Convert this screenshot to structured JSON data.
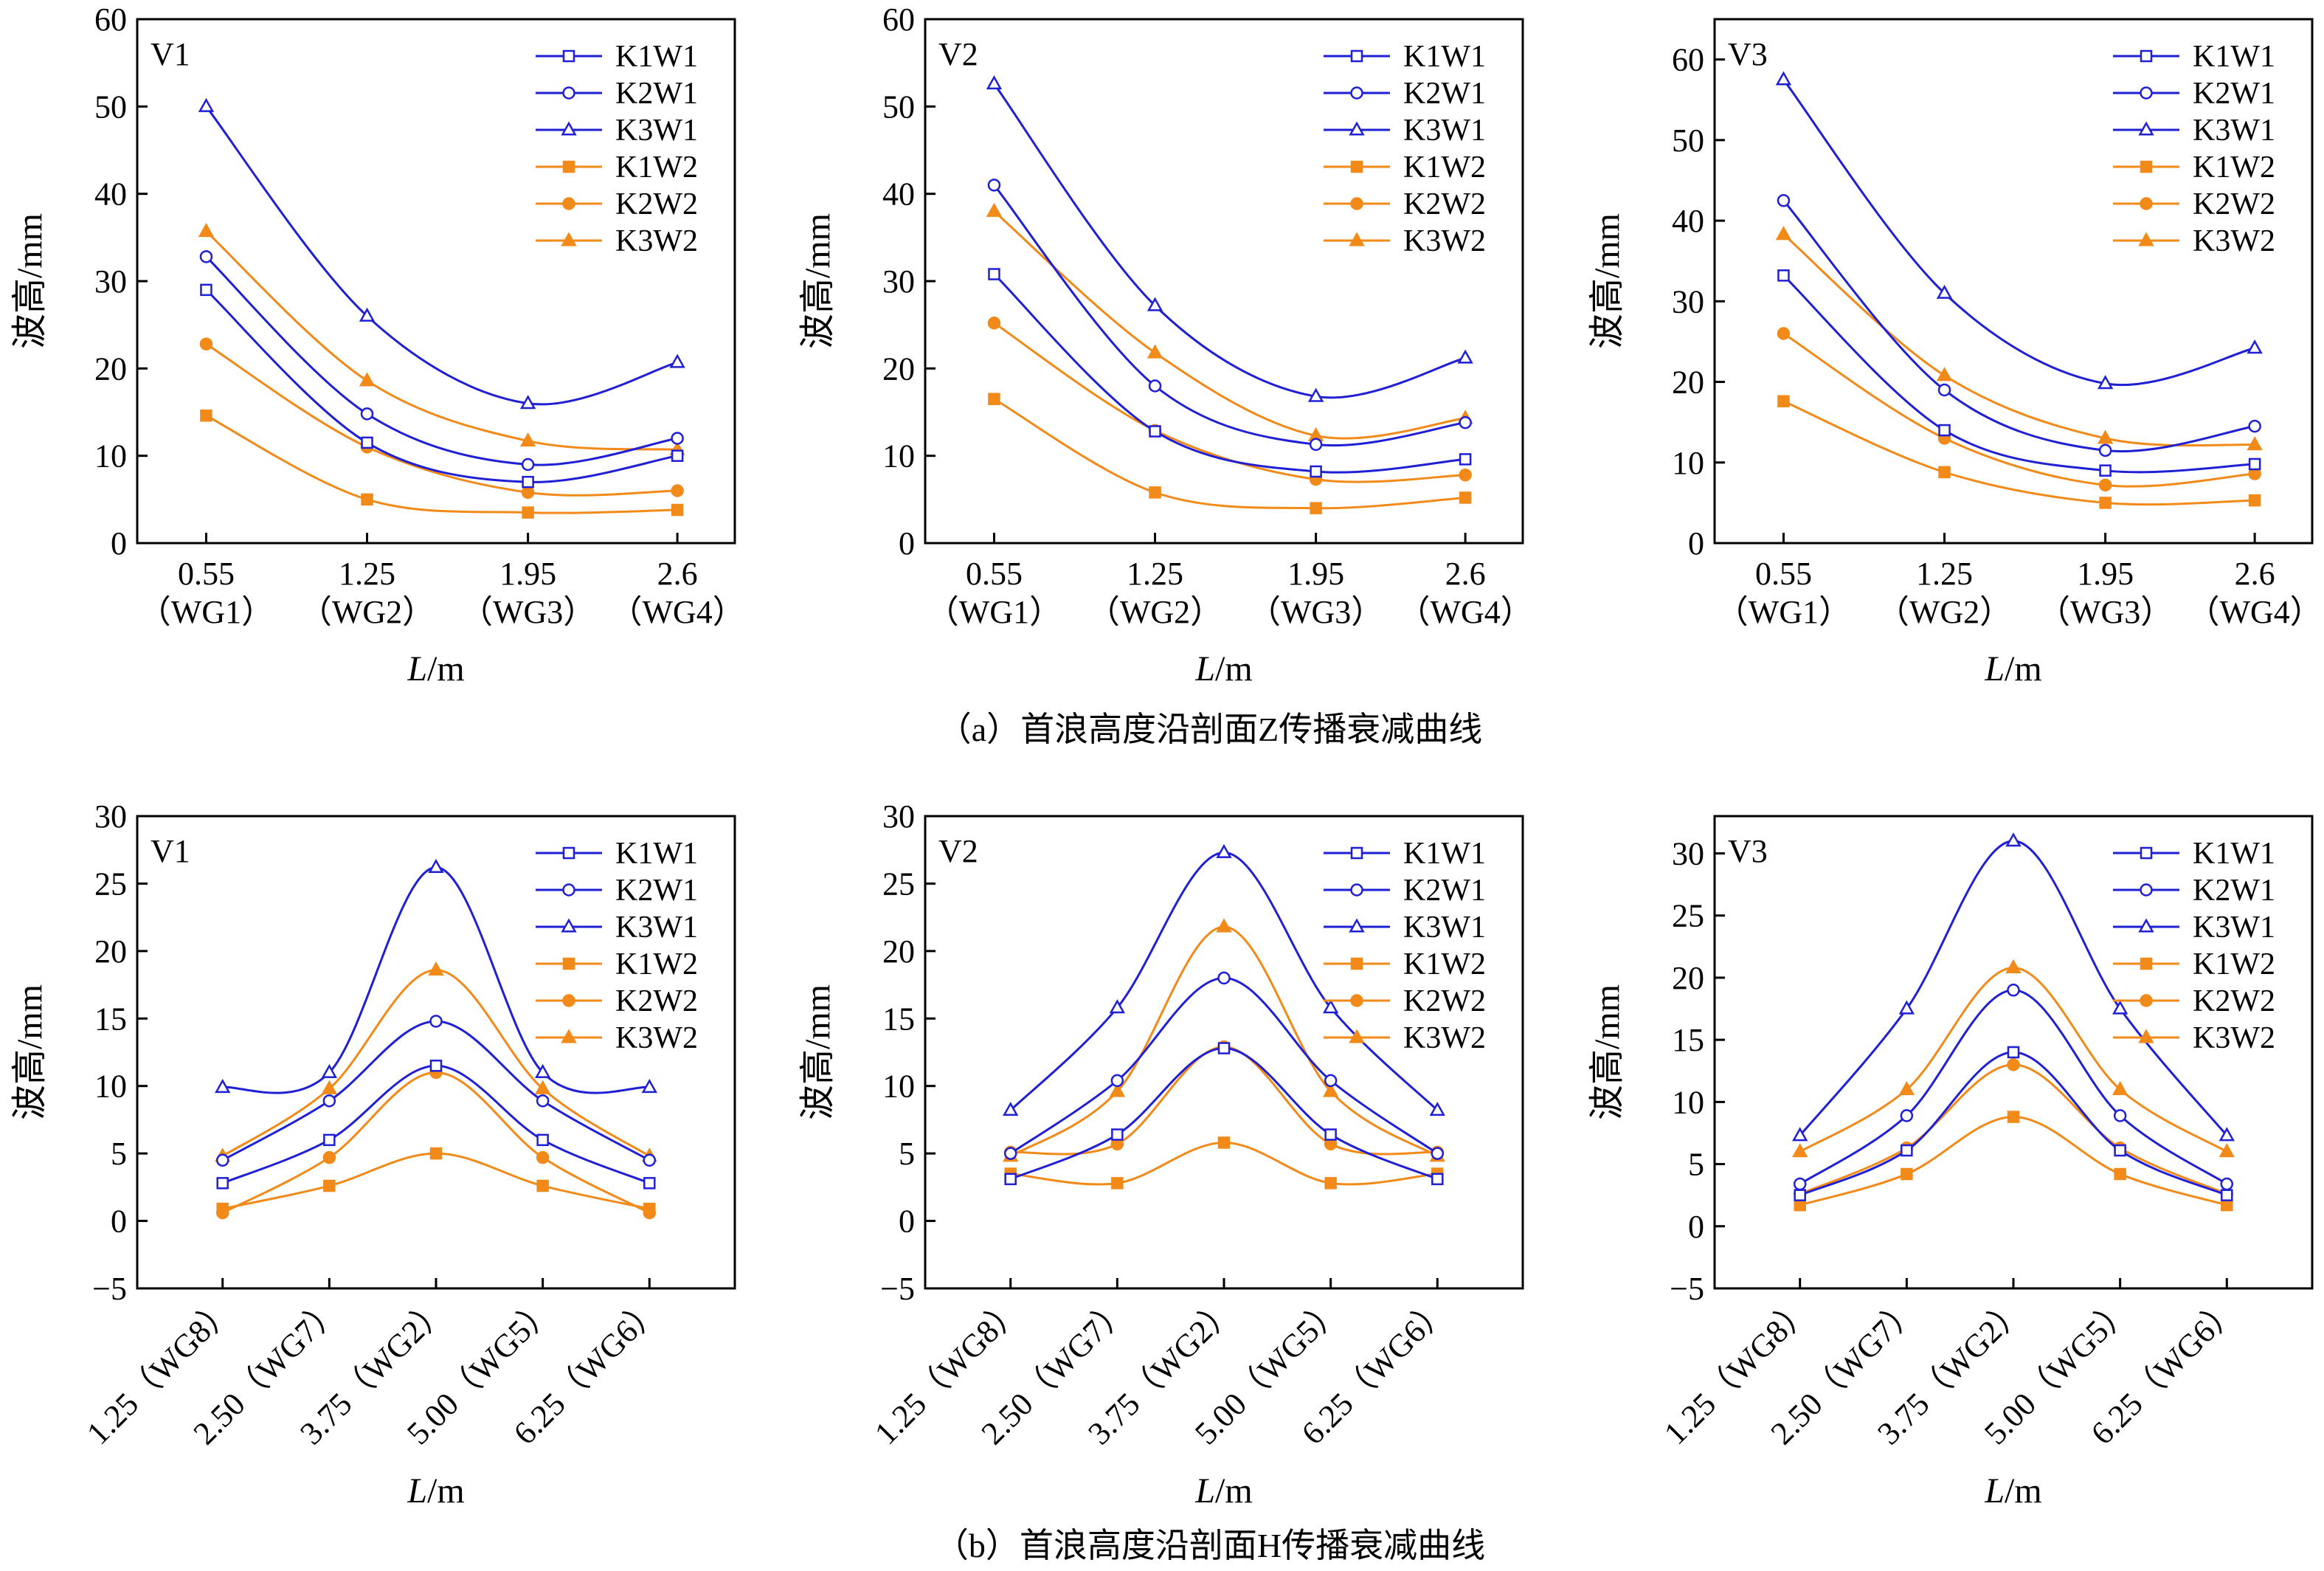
{
  "colors": {
    "W1": "#1f1fd6",
    "W2": "#f28a1a",
    "axis": "#000000"
  },
  "legend_entries": [
    {
      "name": "K1W1",
      "group": "W1",
      "marker": "square",
      "filled": false
    },
    {
      "name": "K2W1",
      "group": "W1",
      "marker": "circle",
      "filled": false
    },
    {
      "name": "K3W1",
      "group": "W1",
      "marker": "triangle",
      "filled": false
    },
    {
      "name": "K1W2",
      "group": "W2",
      "marker": "square",
      "filled": true
    },
    {
      "name": "K2W2",
      "group": "W2",
      "marker": "circle",
      "filled": true
    },
    {
      "name": "K3W2",
      "group": "W2",
      "marker": "triangle",
      "filled": true
    }
  ],
  "captions": {
    "a": "（a）首浪高度沿剖面Z传播衰减曲线",
    "b": "（b）首浪高度沿剖面H传播衰减曲线"
  },
  "chart_data": [
    {
      "type": "line",
      "row": "a",
      "panel_label": "V1",
      "xlabel": "L/m",
      "ylabel": "波高/mm",
      "x": [
        0.55,
        1.25,
        1.95,
        2.6
      ],
      "tick_labels": [
        "0.55",
        "1.25",
        "1.95",
        "2.6"
      ],
      "tick_sublabels": [
        "（WG1）",
        "（WG2）",
        "（WG3）",
        "（WG4）"
      ],
      "ylim": [
        0,
        60
      ],
      "yticks": [
        0,
        10,
        20,
        30,
        40,
        50,
        60
      ],
      "legend_position": "top-right",
      "series": [
        {
          "name": "K1W1",
          "values": [
            29,
            11.5,
            7,
            10
          ]
        },
        {
          "name": "K2W1",
          "values": [
            32.8,
            14.8,
            9,
            12
          ]
        },
        {
          "name": "K3W1",
          "values": [
            50,
            26,
            16,
            20.7
          ]
        },
        {
          "name": "K1W2",
          "values": [
            14.6,
            5,
            3.5,
            3.8
          ]
        },
        {
          "name": "K2W2",
          "values": [
            22.8,
            11,
            5.8,
            6
          ]
        },
        {
          "name": "K3W2",
          "values": [
            35.7,
            18.6,
            11.7,
            10.7
          ]
        }
      ]
    },
    {
      "type": "line",
      "row": "a",
      "panel_label": "V2",
      "xlabel": "L/m",
      "ylabel": "波高/mm",
      "x": [
        0.55,
        1.25,
        1.95,
        2.6
      ],
      "tick_labels": [
        "0.55",
        "1.25",
        "1.95",
        "2.6"
      ],
      "tick_sublabels": [
        "（WG1）",
        "（WG2）",
        "（WG3）",
        "（WG4）"
      ],
      "ylim": [
        0,
        60
      ],
      "yticks": [
        0,
        10,
        20,
        30,
        40,
        50,
        60
      ],
      "legend_position": "top-right",
      "series": [
        {
          "name": "K1W1",
          "values": [
            30.8,
            12.8,
            8.2,
            9.6
          ]
        },
        {
          "name": "K2W1",
          "values": [
            41,
            18,
            11.3,
            13.8
          ]
        },
        {
          "name": "K3W1",
          "values": [
            52.6,
            27.2,
            16.8,
            21.2
          ]
        },
        {
          "name": "K1W2",
          "values": [
            16.5,
            5.8,
            4,
            5.2
          ]
        },
        {
          "name": "K2W2",
          "values": [
            25.2,
            12.9,
            7.3,
            7.8
          ]
        },
        {
          "name": "K3W2",
          "values": [
            38,
            21.8,
            12.3,
            14.3
          ]
        }
      ]
    },
    {
      "type": "line",
      "row": "a",
      "panel_label": "V3",
      "xlabel": "L/m",
      "ylabel": "波高/mm",
      "x": [
        0.55,
        1.25,
        1.95,
        2.6
      ],
      "tick_labels": [
        "0.55",
        "1.25",
        "1.95",
        "2.6"
      ],
      "tick_sublabels": [
        "（WG1）",
        "（WG2）",
        "（WG3）",
        "（WG4）"
      ],
      "ylim": [
        0,
        65
      ],
      "yticks": [
        0,
        10,
        20,
        30,
        40,
        50,
        60
      ],
      "legend_position": "top-right",
      "series": [
        {
          "name": "K1W1",
          "values": [
            33.2,
            14,
            9,
            9.8
          ]
        },
        {
          "name": "K2W1",
          "values": [
            42.5,
            19,
            11.5,
            14.5
          ]
        },
        {
          "name": "K3W1",
          "values": [
            57.5,
            31,
            19.8,
            24.2
          ]
        },
        {
          "name": "K1W2",
          "values": [
            17.6,
            8.8,
            5,
            5.3
          ]
        },
        {
          "name": "K2W2",
          "values": [
            26,
            13,
            7.2,
            8.6
          ]
        },
        {
          "name": "K3W2",
          "values": [
            38.3,
            20.8,
            13,
            12.2
          ]
        }
      ]
    },
    {
      "type": "line",
      "row": "b",
      "panel_label": "V1",
      "xlabel": "L/m",
      "ylabel": "波高/mm",
      "x": [
        1.25,
        2.5,
        3.75,
        5.0,
        6.25
      ],
      "tick_labels": [
        "1.25（WG8）",
        "2.50（WG7）",
        "3.75（WG2）",
        "5.00（WG5）",
        "6.25（WG6）"
      ],
      "ylim": [
        -5,
        30
      ],
      "yticks": [
        -5,
        0,
        5,
        10,
        15,
        20,
        25,
        30
      ],
      "legend_position": "top-right",
      "series": [
        {
          "name": "K1W1",
          "values": [
            2.8,
            6,
            11.5,
            6,
            2.8
          ]
        },
        {
          "name": "K2W1",
          "values": [
            4.5,
            8.9,
            14.8,
            8.9,
            4.5
          ]
        },
        {
          "name": "K3W1",
          "values": [
            9.9,
            11,
            26.2,
            11,
            9.9
          ]
        },
        {
          "name": "K1W2",
          "values": [
            0.9,
            2.6,
            5,
            2.6,
            0.9
          ]
        },
        {
          "name": "K2W2",
          "values": [
            0.6,
            4.7,
            11,
            4.7,
            0.6
          ]
        },
        {
          "name": "K3W2",
          "values": [
            4.8,
            9.8,
            18.6,
            9.8,
            4.8
          ]
        }
      ]
    },
    {
      "type": "line",
      "row": "b",
      "panel_label": "V2",
      "xlabel": "L/m",
      "ylabel": "波高/mm",
      "x": [
        1.25,
        2.5,
        3.75,
        5.0,
        6.25
      ],
      "tick_labels": [
        "1.25（WG8）",
        "2.50（WG7）",
        "3.75（WG2）",
        "5.00（WG5）",
        "6.25（WG6）"
      ],
      "ylim": [
        -5,
        30
      ],
      "yticks": [
        -5,
        0,
        5,
        10,
        15,
        20,
        25,
        30
      ],
      "legend_position": "top-right",
      "series": [
        {
          "name": "K1W1",
          "values": [
            3.1,
            6.4,
            12.8,
            6.4,
            3.1
          ]
        },
        {
          "name": "K2W1",
          "values": [
            5,
            10.4,
            18,
            10.4,
            5
          ]
        },
        {
          "name": "K3W1",
          "values": [
            8.2,
            15.8,
            27.3,
            15.8,
            8.2
          ]
        },
        {
          "name": "K1W2",
          "values": [
            3.5,
            2.8,
            5.8,
            2.8,
            3.5
          ]
        },
        {
          "name": "K2W2",
          "values": [
            5.1,
            5.7,
            12.9,
            5.7,
            5.1
          ]
        },
        {
          "name": "K3W2",
          "values": [
            4.8,
            9.6,
            21.8,
            9.6,
            4.8
          ]
        }
      ]
    },
    {
      "type": "line",
      "row": "b",
      "panel_label": "V3",
      "xlabel": "L/m",
      "ylabel": "波高/mm",
      "x": [
        1.25,
        2.5,
        3.75,
        5.0,
        6.25
      ],
      "tick_labels": [
        "1.25（WG8）",
        "2.50（WG7）",
        "3.75（WG2）",
        "5.00（WG5）",
        "6.25（WG6）"
      ],
      "ylim": [
        -5,
        33
      ],
      "yticks": [
        -5,
        0,
        5,
        10,
        15,
        20,
        25,
        30
      ],
      "legend_position": "top-right",
      "series": [
        {
          "name": "K1W1",
          "values": [
            2.5,
            6.1,
            14,
            6.1,
            2.5
          ]
        },
        {
          "name": "K2W1",
          "values": [
            3.4,
            8.9,
            19,
            8.9,
            3.4
          ]
        },
        {
          "name": "K3W1",
          "values": [
            7.3,
            17.5,
            31,
            17.5,
            7.3
          ]
        },
        {
          "name": "K1W2",
          "values": [
            1.7,
            4.2,
            8.8,
            4.2,
            1.7
          ]
        },
        {
          "name": "K2W2",
          "values": [
            2.6,
            6.3,
            13,
            6.3,
            2.6
          ]
        },
        {
          "name": "K3W2",
          "values": [
            6,
            11,
            20.8,
            11,
            6
          ]
        }
      ]
    }
  ]
}
